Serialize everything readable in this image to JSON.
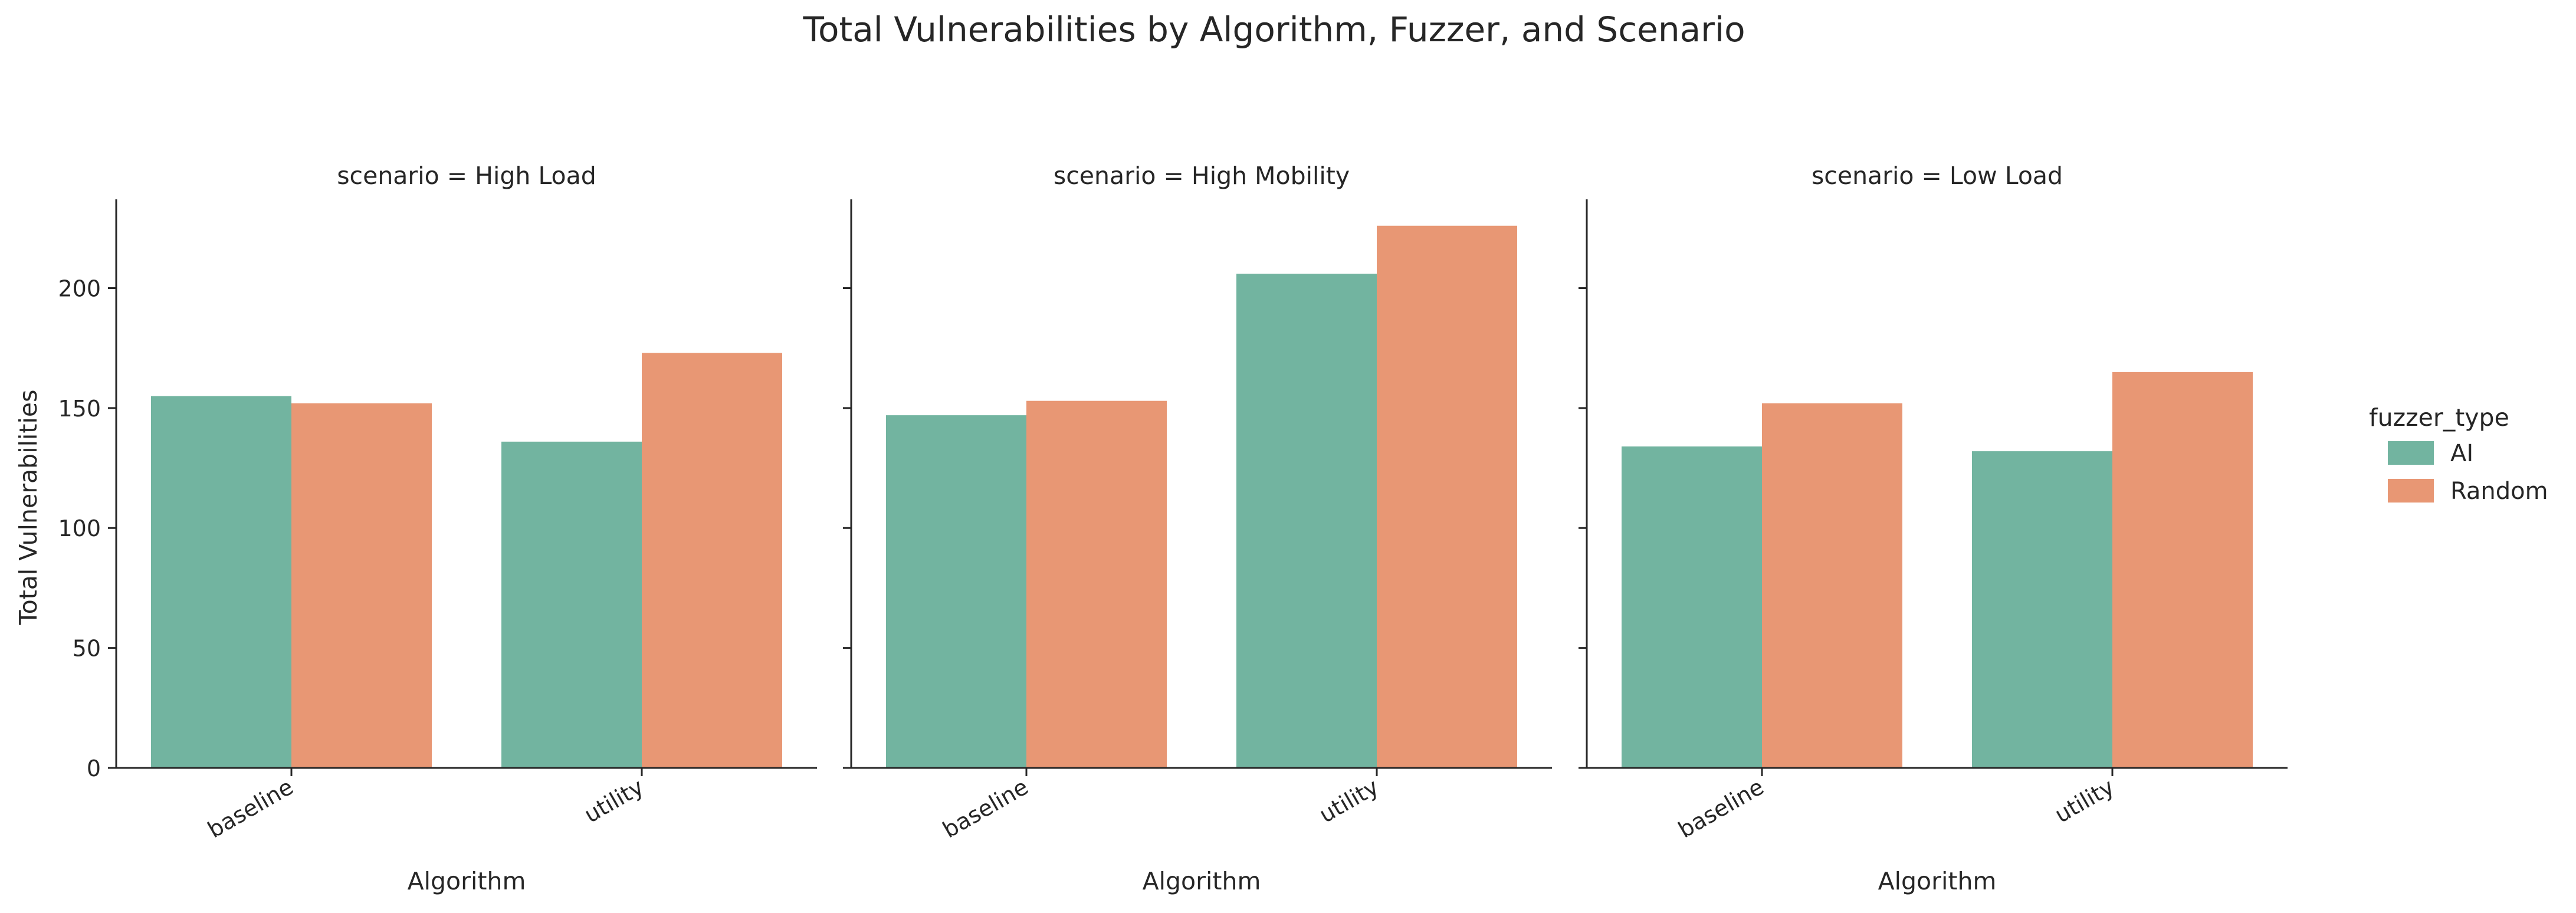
{
  "chart_data": {
    "type": "bar",
    "title": "Total Vulnerabilities by Algorithm, Fuzzer, and Scenario",
    "xlabel": "Algorithm",
    "ylabel": "Total Vulnerabilities",
    "ylim": [
      0,
      237
    ],
    "yticks": [
      0,
      50,
      100,
      150,
      200
    ],
    "categories": [
      "baseline",
      "utility"
    ],
    "legend": {
      "title": "fuzzer_type",
      "placement": "right"
    },
    "series": [
      {
        "name": "AI",
        "color": "#72b4a0"
      },
      {
        "name": "Random",
        "color": "#e89774"
      }
    ],
    "panels": [
      {
        "title": "scenario = High Load",
        "values": {
          "AI": [
            155,
            136
          ],
          "Random": [
            152,
            173
          ]
        }
      },
      {
        "title": "scenario = High Mobility",
        "values": {
          "AI": [
            147,
            206
          ],
          "Random": [
            153,
            226
          ]
        }
      },
      {
        "title": "scenario = Low Load",
        "values": {
          "AI": [
            134,
            132
          ],
          "Random": [
            152,
            165
          ]
        }
      }
    ]
  }
}
